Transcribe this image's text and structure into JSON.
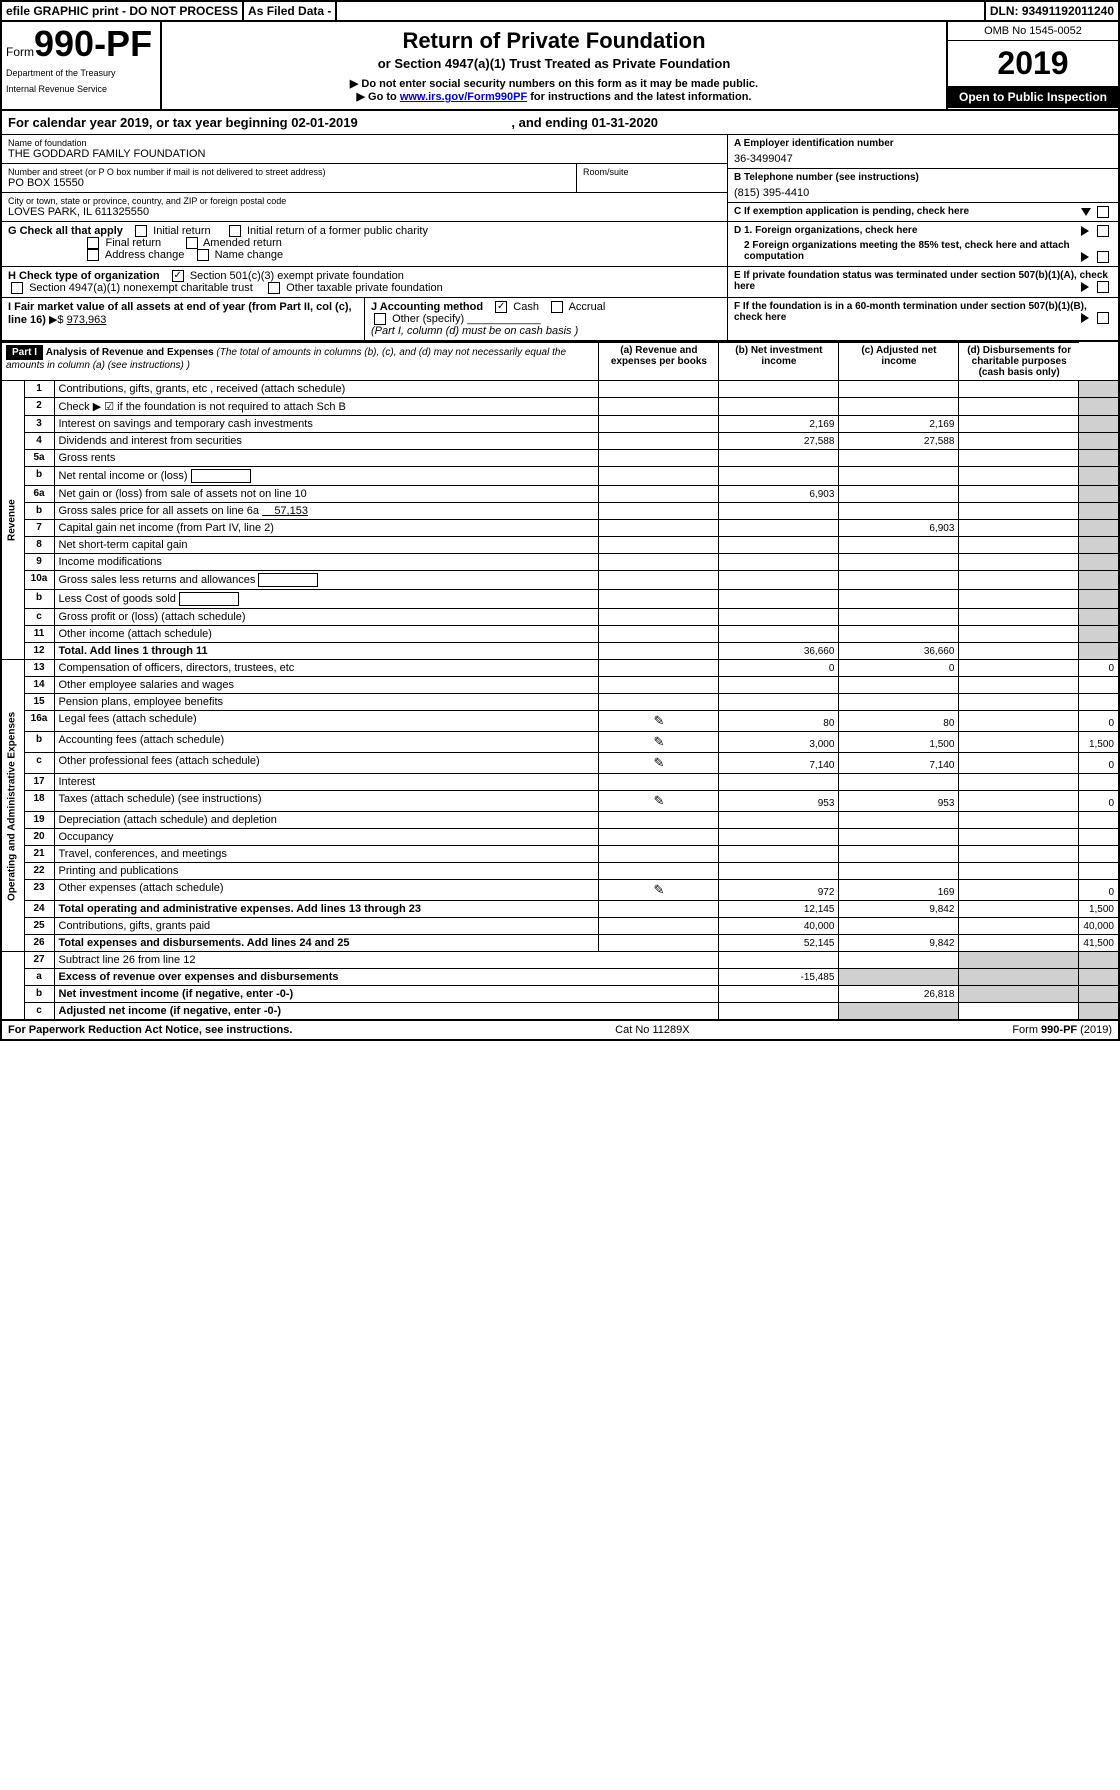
{
  "topbar": {
    "efile": "efile GRAPHIC print - DO NOT PROCESS",
    "asfiled": "As Filed Data -",
    "dln": "DLN: 93491192011240"
  },
  "header": {
    "form_prefix": "Form",
    "form_number": "990-PF",
    "dept1": "Department of the Treasury",
    "dept2": "Internal Revenue Service",
    "title": "Return of Private Foundation",
    "subtitle": "or Section 4947(a)(1) Trust Treated as Private Foundation",
    "note1": "▶ Do not enter social security numbers on this form as it may be made public.",
    "note2_pre": "▶ Go to ",
    "note2_link": "www.irs.gov/Form990PF",
    "note2_post": " for instructions and the latest information.",
    "omb": "OMB No 1545-0052",
    "year": "2019",
    "open": "Open to Public Inspection"
  },
  "calyear": {
    "text_pre": "For calendar year 2019, or tax year beginning ",
    "begin": "02-01-2019",
    "text_mid": " , and ending ",
    "end": "01-31-2020"
  },
  "name_block": {
    "label": "Name of foundation",
    "value": "THE GODDARD FAMILY FOUNDATION"
  },
  "ein_block": {
    "label": "A Employer identification number",
    "value": "36-3499047"
  },
  "address": {
    "label": "Number and street (or P O  box number if mail is not delivered to street address)",
    "value": "PO BOX 15550",
    "room_label": "Room/suite"
  },
  "phone": {
    "label": "B Telephone number (see instructions)",
    "value": "(815) 395-4410"
  },
  "city": {
    "label": "City or town, state or province, country, and ZIP or foreign postal code",
    "value": "LOVES PARK, IL  611325550"
  },
  "c_exempt": "C If exemption application is pending, check here",
  "g_check": {
    "label": "G Check all that apply",
    "opts": [
      "Initial return",
      "Initial return of a former public charity",
      "Final return",
      "Amended return",
      "Address change",
      "Name change"
    ]
  },
  "d_foreign": {
    "d1": "D 1. Foreign organizations, check here",
    "d2": "2 Foreign organizations meeting the 85% test, check here and attach computation"
  },
  "h_check": {
    "label": "H Check type of organization",
    "opt1": "Section 501(c)(3) exempt private foundation",
    "opt2": "Section 4947(a)(1) nonexempt charitable trust",
    "opt3": "Other taxable private foundation"
  },
  "e_term": "E  If private foundation status was terminated under section 507(b)(1)(A), check here",
  "i_fmv": {
    "label": "I Fair market value of all assets at end of year (from Part II, col  (c), line 16)",
    "value": "973,963"
  },
  "j_acct": {
    "label": "J Accounting method",
    "cash": "Cash",
    "accrual": "Accrual",
    "other": "Other (specify)",
    "note": "(Part I, column (d) must be on cash basis )"
  },
  "f_60mo": "F  If the foundation is in a 60-month termination under section 507(b)(1)(B), check here",
  "part1": {
    "label": "Part I",
    "title": "Analysis of Revenue and Expenses",
    "note": " (The total of amounts in columns (b), (c), and (d) may not necessarily equal the amounts in column (a) (see instructions) )",
    "cols": {
      "a": "(a) Revenue and expenses per books",
      "b": "(b) Net investment income",
      "c": "(c) Adjusted net income",
      "d": "(d) Disbursements for charitable purposes (cash basis only)"
    }
  },
  "sections": {
    "revenue": "Revenue",
    "expenses": "Operating and Administrative Expenses"
  },
  "rows": [
    {
      "n": "1",
      "d": "Contributions, gifts, grants, etc , received (attach schedule)",
      "a": "",
      "b": "",
      "c": "",
      "dd": ""
    },
    {
      "n": "2",
      "d": "Check ▶ ☑ if the foundation is not required to attach Sch B",
      "a": "",
      "b": "",
      "c": "",
      "dd": "",
      "has_check": true
    },
    {
      "n": "3",
      "d": "Interest on savings and temporary cash investments",
      "a": "2,169",
      "b": "2,169",
      "c": "",
      "dd": ""
    },
    {
      "n": "4",
      "d": "Dividends and interest from securities",
      "a": "27,588",
      "b": "27,588",
      "c": "",
      "dd": ""
    },
    {
      "n": "5a",
      "d": "Gross rents",
      "a": "",
      "b": "",
      "c": "",
      "dd": ""
    },
    {
      "n": "b",
      "d": "Net rental income or (loss)",
      "a": "",
      "b": "",
      "c": "",
      "dd": "",
      "inline_box": true
    },
    {
      "n": "6a",
      "d": "Net gain or (loss) from sale of assets not on line 10",
      "a": "6,903",
      "b": "",
      "c": "",
      "dd": ""
    },
    {
      "n": "b",
      "d": "Gross sales price for all assets on line 6a",
      "a": "",
      "b": "",
      "c": "",
      "dd": "",
      "inline_val": "57,153"
    },
    {
      "n": "7",
      "d": "Capital gain net income (from Part IV, line 2)",
      "a": "",
      "b": "6,903",
      "c": "",
      "dd": ""
    },
    {
      "n": "8",
      "d": "Net short-term capital gain",
      "a": "",
      "b": "",
      "c": "",
      "dd": ""
    },
    {
      "n": "9",
      "d": "Income modifications",
      "a": "",
      "b": "",
      "c": "",
      "dd": ""
    },
    {
      "n": "10a",
      "d": "Gross sales less returns and allowances",
      "a": "",
      "b": "",
      "c": "",
      "dd": "",
      "inline_box": true
    },
    {
      "n": "b",
      "d": "Less  Cost of goods sold",
      "a": "",
      "b": "",
      "c": "",
      "dd": "",
      "inline_box": true
    },
    {
      "n": "c",
      "d": "Gross profit or (loss) (attach schedule)",
      "a": "",
      "b": "",
      "c": "",
      "dd": ""
    },
    {
      "n": "11",
      "d": "Other income (attach schedule)",
      "a": "",
      "b": "",
      "c": "",
      "dd": ""
    },
    {
      "n": "12",
      "d": "Total. Add lines 1 through 11",
      "a": "36,660",
      "b": "36,660",
      "c": "",
      "dd": "",
      "bold": true
    }
  ],
  "exp_rows": [
    {
      "n": "13",
      "d": "Compensation of officers, directors, trustees, etc",
      "a": "0",
      "b": "0",
      "c": "",
      "dd": "0"
    },
    {
      "n": "14",
      "d": "Other employee salaries and wages",
      "a": "",
      "b": "",
      "c": "",
      "dd": ""
    },
    {
      "n": "15",
      "d": "Pension plans, employee benefits",
      "a": "",
      "b": "",
      "c": "",
      "dd": ""
    },
    {
      "n": "16a",
      "d": "Legal fees (attach schedule)",
      "a": "80",
      "b": "80",
      "c": "",
      "dd": "0",
      "icon": true
    },
    {
      "n": "b",
      "d": "Accounting fees (attach schedule)",
      "a": "3,000",
      "b": "1,500",
      "c": "",
      "dd": "1,500",
      "icon": true
    },
    {
      "n": "c",
      "d": "Other professional fees (attach schedule)",
      "a": "7,140",
      "b": "7,140",
      "c": "",
      "dd": "0",
      "icon": true
    },
    {
      "n": "17",
      "d": "Interest",
      "a": "",
      "b": "",
      "c": "",
      "dd": ""
    },
    {
      "n": "18",
      "d": "Taxes (attach schedule) (see instructions)",
      "a": "953",
      "b": "953",
      "c": "",
      "dd": "0",
      "icon": true
    },
    {
      "n": "19",
      "d": "Depreciation (attach schedule) and depletion",
      "a": "",
      "b": "",
      "c": "",
      "dd": ""
    },
    {
      "n": "20",
      "d": "Occupancy",
      "a": "",
      "b": "",
      "c": "",
      "dd": ""
    },
    {
      "n": "21",
      "d": "Travel, conferences, and meetings",
      "a": "",
      "b": "",
      "c": "",
      "dd": ""
    },
    {
      "n": "22",
      "d": "Printing and publications",
      "a": "",
      "b": "",
      "c": "",
      "dd": ""
    },
    {
      "n": "23",
      "d": "Other expenses (attach schedule)",
      "a": "972",
      "b": "169",
      "c": "",
      "dd": "0",
      "icon": true
    },
    {
      "n": "24",
      "d": "Total operating and administrative expenses. Add lines 13 through 23",
      "a": "12,145",
      "b": "9,842",
      "c": "",
      "dd": "1,500",
      "bold": true
    },
    {
      "n": "25",
      "d": "Contributions, gifts, grants paid",
      "a": "40,000",
      "b": "",
      "c": "",
      "dd": "40,000"
    },
    {
      "n": "26",
      "d": "Total expenses and disbursements. Add lines 24 and 25",
      "a": "52,145",
      "b": "9,842",
      "c": "",
      "dd": "41,500",
      "bold": true
    }
  ],
  "bottom_rows": [
    {
      "n": "27",
      "d": "Subtract line 26 from line 12",
      "a": "",
      "b": "",
      "c": "",
      "dd": ""
    },
    {
      "n": "a",
      "d": "Excess of revenue over expenses and disbursements",
      "a": "-15,485",
      "b": "",
      "c": "",
      "dd": "",
      "bold": true
    },
    {
      "n": "b",
      "d": "Net investment income (if negative, enter -0-)",
      "a": "",
      "b": "26,818",
      "c": "",
      "dd": "",
      "bold": true
    },
    {
      "n": "c",
      "d": "Adjusted net income (if negative, enter -0-)",
      "a": "",
      "b": "",
      "c": "",
      "dd": "",
      "bold": true
    }
  ],
  "footer": {
    "left": "For Paperwork Reduction Act Notice, see instructions.",
    "mid": "Cat  No  11289X",
    "right": "Form 990-PF (2019)"
  }
}
